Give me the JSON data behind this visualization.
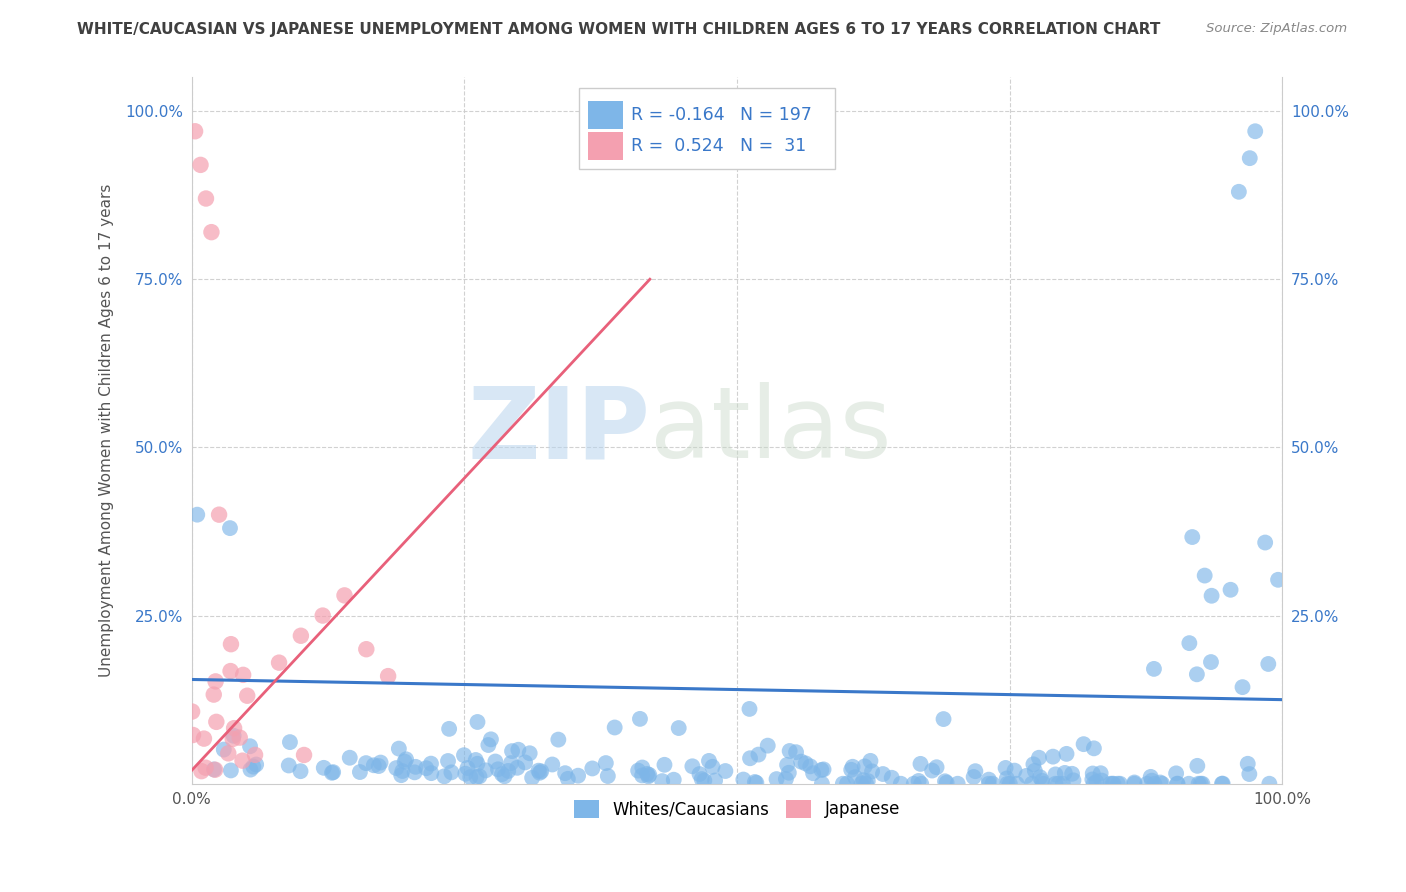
{
  "title": "WHITE/CAUCASIAN VS JAPANESE UNEMPLOYMENT AMONG WOMEN WITH CHILDREN AGES 6 TO 17 YEARS CORRELATION CHART",
  "source": "Source: ZipAtlas.com",
  "ylabel": "Unemployment Among Women with Children Ages 6 to 17 years",
  "legend_label_1": "Whites/Caucasians",
  "legend_label_2": "Japanese",
  "r1": -0.164,
  "n1": 197,
  "r2": 0.524,
  "n2": 31,
  "blue_color": "#7EB6E8",
  "pink_color": "#F4A0B0",
  "blue_line_color": "#3A78C9",
  "pink_line_color": "#E8607A",
  "watermark_zip": "ZIP",
  "watermark_atlas": "atlas",
  "background_color": "#FFFFFF",
  "grid_color": "#CCCCCC",
  "xlim": [
    0.0,
    1.0
  ],
  "ylim": [
    0.0,
    1.05
  ],
  "title_color": "#404040",
  "source_color": "#888888",
  "axis_label_color": "#555555",
  "tick_color": "#3A78C9",
  "legend_r1_text": "R = -0.164",
  "legend_n1_text": "N = 197",
  "legend_r2_text": "R =  0.524",
  "legend_n2_text": "N =  31"
}
